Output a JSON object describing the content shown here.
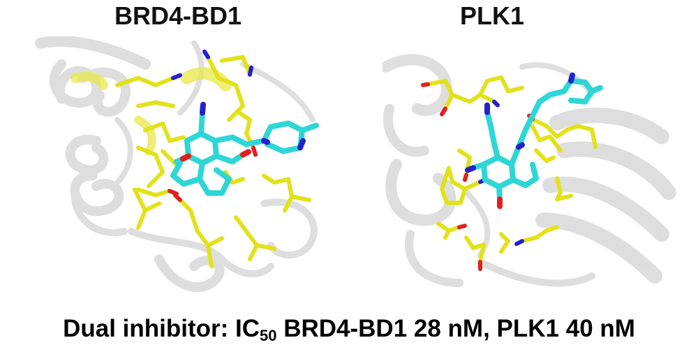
{
  "panels": {
    "left": {
      "title": "BRD4-BD1"
    },
    "right": {
      "title": "PLK1"
    }
  },
  "caption": {
    "prefix": "Dual inhibitor: IC",
    "subscript": "50",
    "suffix": " BRD4-BD1 28 nM, PLK1 40 nM"
  },
  "colors": {
    "protein": "#d6d6d6",
    "residues": "#e2e21a",
    "ligand": "#2fd6d6",
    "nitrogen": "#2222cc",
    "oxygen": "#e02020"
  }
}
